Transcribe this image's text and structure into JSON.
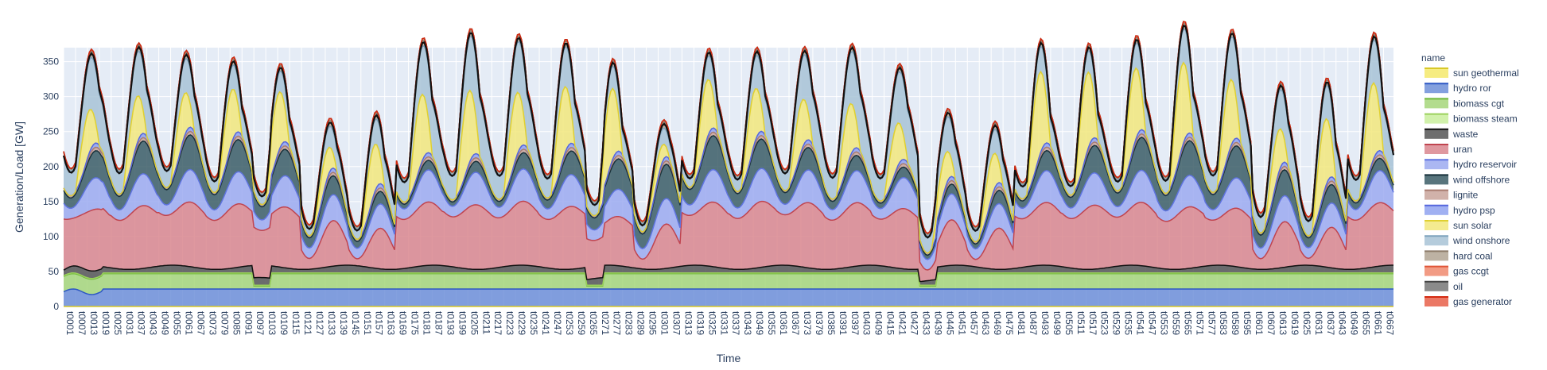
{
  "chart_data": {
    "type": "area",
    "stacked": true,
    "xlabel": "Time",
    "ylabel": "Generation/Load [GW]",
    "ylim": [
      0,
      370
    ],
    "yticks": [
      0,
      50,
      100,
      150,
      200,
      250,
      300,
      350
    ],
    "x_start_hour": 1,
    "x_end_hour": 672,
    "x_tick_start": 1,
    "x_tick_step": 6,
    "x_tick_prefix": "t",
    "grid": true,
    "legend_title": "name",
    "legend_position": "right",
    "colors": {
      "plot_bg": "#e5ecf6",
      "grid": "#ffffff",
      "text": "#2a3f5f"
    },
    "series": [
      {
        "name": "sun geothermal",
        "fill": "#f5e96b",
        "line": "#d8c828",
        "in_stack": false,
        "values": [
          0
        ]
      },
      {
        "name": "hydro ror",
        "fill": "#6f8fd8",
        "line": "#2d57c4",
        "values": [
          25
        ]
      },
      {
        "name": "biomass cgt",
        "fill": "#a6d67a",
        "line": "#6fb83a",
        "values": [
          22
        ]
      },
      {
        "name": "biomass steam",
        "fill": "#c9ee9c",
        "line": "#9bd15c",
        "values": [
          1
        ]
      },
      {
        "name": "waste",
        "fill": "#555555",
        "line": "#111111",
        "values": [
          8
        ]
      },
      {
        "name": "uran",
        "fill": "#d9868e",
        "line": "#c0444f",
        "values": [
          70
        ]
      },
      {
        "name": "hydro reservoir",
        "fill": "#9caaf0",
        "line": "#5f74e0",
        "values": [
          25
        ]
      },
      {
        "name": "wind offshore",
        "fill": "#3b5d66",
        "line": "#18313a",
        "values": [
          28
        ]
      },
      {
        "name": "lignite",
        "fill": "#c9a59b",
        "line": "#a97c70",
        "values": [
          4
        ]
      },
      {
        "name": "hydro psp",
        "fill": "#8fa2f0",
        "line": "#5566dd",
        "values": [
          5
        ]
      },
      {
        "name": "sun solar",
        "fill": "#f2e77c",
        "line": "#e0d030",
        "values": [
          0
        ]
      },
      {
        "name": "wind onshore",
        "fill": "#a8c3d6",
        "line": "#7fa3bd",
        "values": [
          55
        ]
      },
      {
        "name": "hard coal",
        "fill": "#b2a493",
        "line": "#8c7b69",
        "values": [
          5
        ]
      },
      {
        "name": "gas ccgt",
        "fill": "#f08a6e",
        "line": "#e05538",
        "values": [
          1
        ]
      },
      {
        "name": "oil",
        "fill": "#777777",
        "line": "#444444",
        "values": [
          0
        ]
      },
      {
        "name": "gas generator",
        "fill": "#e8604a",
        "line": "#d42a10",
        "values": [
          0
        ]
      }
    ],
    "load_line": {
      "name": "load",
      "color": "#111111"
    }
  }
}
